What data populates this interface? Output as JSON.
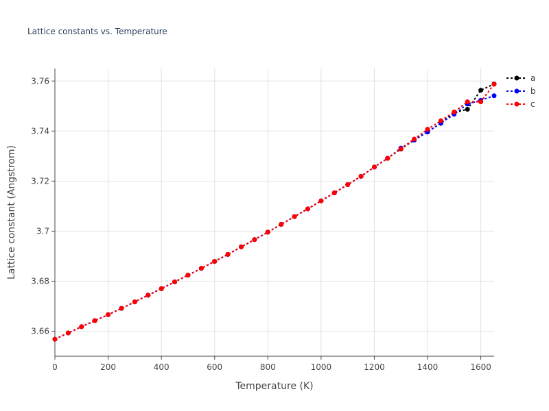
{
  "chart_data": {
    "type": "line",
    "title": "Lattice constants vs. Temperature",
    "xlabel": "Temperature (K)",
    "ylabel": "Lattice constant (Angstrom)",
    "xlim": [
      0,
      1650
    ],
    "ylim": [
      3.65,
      3.765
    ],
    "xticks": [
      0,
      200,
      400,
      600,
      800,
      1000,
      1200,
      1400,
      1600
    ],
    "xtick_labels": [
      "0",
      "200",
      "400",
      "600",
      "800",
      "1000",
      "1200",
      "1400",
      "1600"
    ],
    "yticks": [
      3.66,
      3.68,
      3.7,
      3.72,
      3.74,
      3.76
    ],
    "ytick_labels": [
      "3.66",
      "3.68",
      "3.7",
      "3.72",
      "3.74",
      "3.76"
    ],
    "grid": true,
    "legend_position": "top-right",
    "series": [
      {
        "name": "a",
        "color": "#000000",
        "x": [
          0,
          50,
          100,
          150,
          200,
          250,
          300,
          350,
          400,
          450,
          500,
          550,
          600,
          650,
          700,
          750,
          800,
          850,
          900,
          950,
          1000,
          1050,
          1100,
          1150,
          1200,
          1250,
          1300,
          1350,
          1400,
          1450,
          1500,
          1550,
          1600,
          1650
        ],
        "y": [
          3.6568,
          3.6593,
          3.6618,
          3.6642,
          3.6666,
          3.6691,
          3.6717,
          3.6744,
          3.677,
          3.6797,
          3.6824,
          3.6851,
          3.6879,
          3.6907,
          3.6937,
          3.6966,
          3.6996,
          3.7027,
          3.7058,
          3.7089,
          3.7121,
          3.7153,
          3.7186,
          3.7219,
          3.7256,
          3.7291,
          3.7328,
          3.7364,
          3.7397,
          3.7431,
          3.7474,
          3.7487,
          3.7563,
          3.7588
        ]
      },
      {
        "name": "b",
        "color": "#0000ff",
        "x": [
          0,
          50,
          100,
          150,
          200,
          250,
          300,
          350,
          400,
          450,
          500,
          550,
          600,
          650,
          700,
          750,
          800,
          850,
          900,
          950,
          1000,
          1050,
          1100,
          1150,
          1200,
          1250,
          1300,
          1350,
          1400,
          1450,
          1500,
          1550,
          1600,
          1650
        ],
        "y": [
          3.6568,
          3.6593,
          3.6618,
          3.6642,
          3.6666,
          3.6691,
          3.6717,
          3.6744,
          3.677,
          3.6797,
          3.6824,
          3.6851,
          3.6879,
          3.6907,
          3.6937,
          3.6966,
          3.6996,
          3.7027,
          3.7058,
          3.7089,
          3.7121,
          3.7153,
          3.7186,
          3.7219,
          3.7256,
          3.7291,
          3.7332,
          3.7364,
          3.7396,
          3.7432,
          3.7467,
          3.7508,
          3.7523,
          3.7541
        ]
      },
      {
        "name": "c",
        "color": "#ff0000",
        "x": [
          0,
          50,
          100,
          150,
          200,
          250,
          300,
          350,
          400,
          450,
          500,
          550,
          600,
          650,
          700,
          750,
          800,
          850,
          900,
          950,
          1000,
          1050,
          1100,
          1150,
          1200,
          1250,
          1300,
          1350,
          1400,
          1450,
          1500,
          1550,
          1600,
          1650
        ],
        "y": [
          3.6568,
          3.6593,
          3.6618,
          3.6642,
          3.6666,
          3.6691,
          3.6717,
          3.6744,
          3.677,
          3.6797,
          3.6824,
          3.6851,
          3.6879,
          3.6907,
          3.6937,
          3.6966,
          3.6996,
          3.7027,
          3.7058,
          3.7089,
          3.7121,
          3.7153,
          3.7186,
          3.7219,
          3.7256,
          3.7291,
          3.7329,
          3.7368,
          3.7407,
          3.7441,
          3.7476,
          3.7517,
          3.7517,
          3.7587
        ]
      }
    ]
  }
}
